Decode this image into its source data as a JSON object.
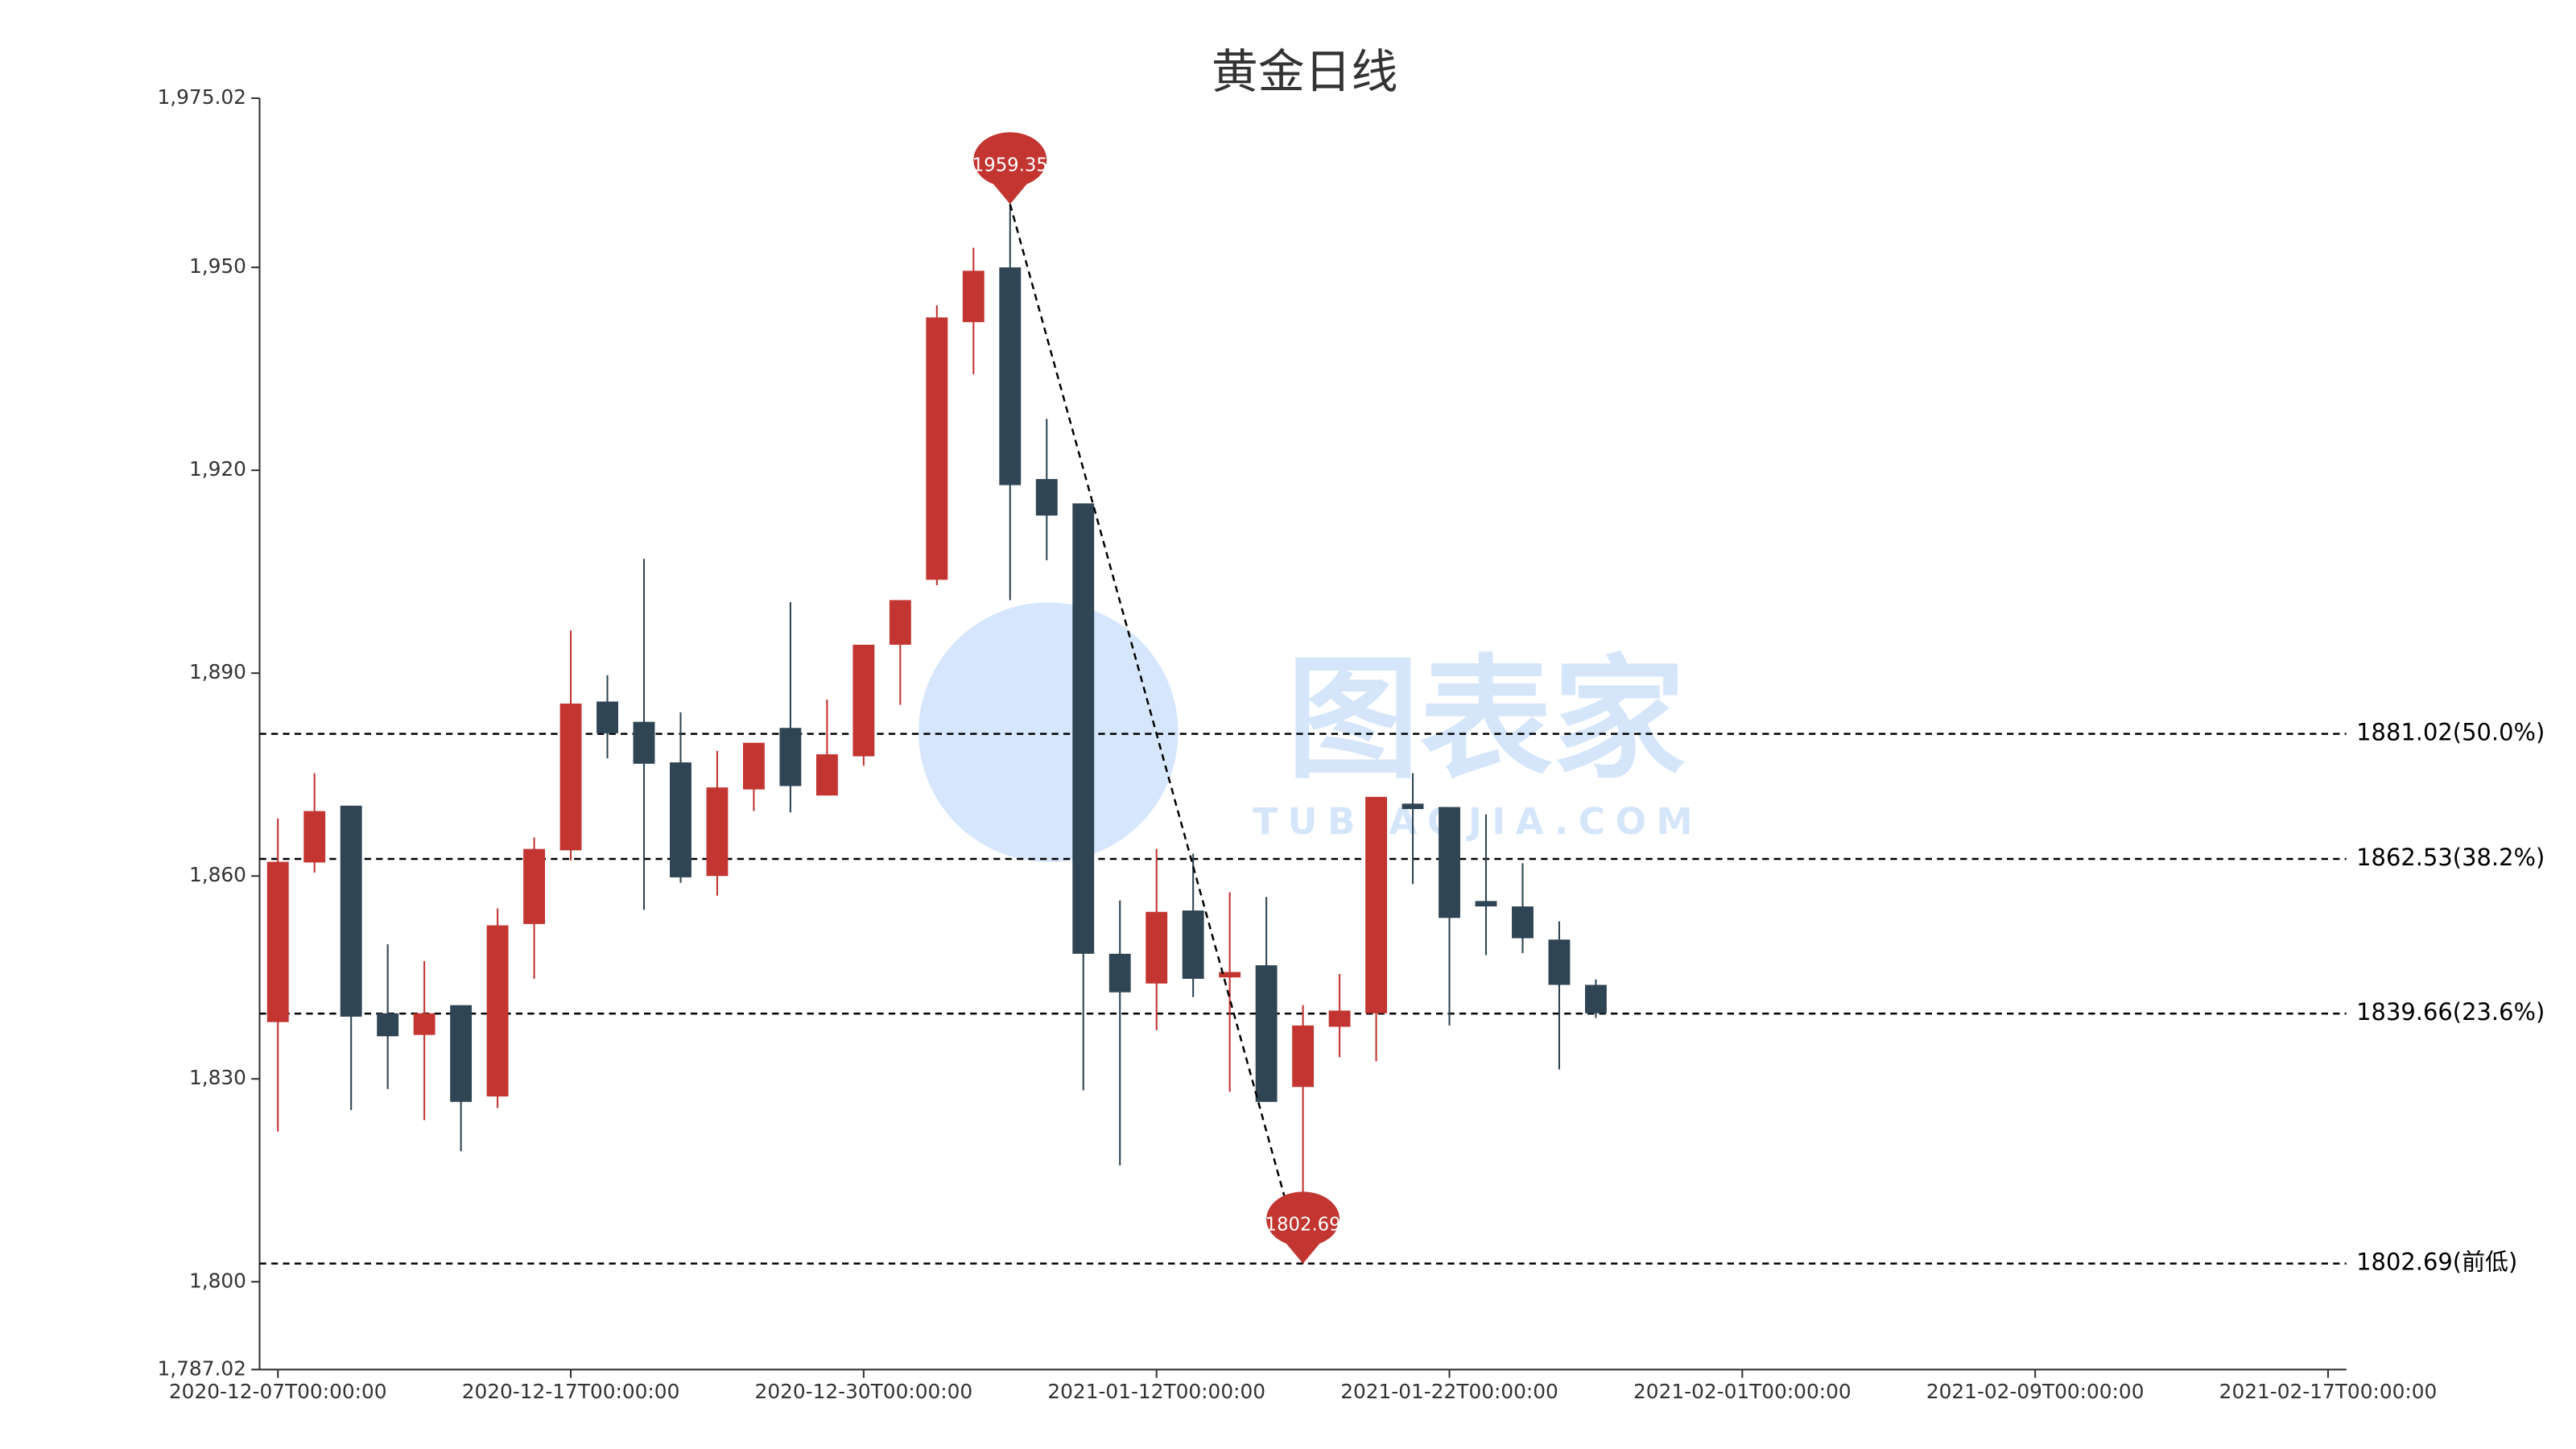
{
  "chart_data": {
    "type": "candlestick",
    "title": "黄金日线",
    "categories": [
      "2020-12-07T00:00:00",
      null,
      null,
      null,
      null,
      null,
      null,
      null,
      "2020-12-17T00:00:00",
      null,
      null,
      null,
      null,
      null,
      null,
      null,
      "2020-12-30T00:00:00",
      null,
      null,
      null,
      null,
      null,
      null,
      null,
      "2021-01-12T00:00:00",
      null,
      null,
      null,
      null,
      null,
      null,
      null,
      "2021-01-22T00:00:00",
      null,
      null,
      null,
      null,
      null,
      null,
      null,
      "2021-02-01T00:00:00",
      null,
      null,
      null,
      null,
      null,
      null,
      null,
      "2021-02-09T00:00:00",
      null,
      null,
      null,
      null,
      null,
      null,
      null,
      "2021-02-17T00:00:00"
    ],
    "open": [
      1838.4,
      1862,
      1870.4,
      1839.7,
      1836.5,
      1840.9,
      1827.4,
      1852.9,
      1863.8,
      1885.8,
      1882.8,
      1876.8,
      1860,
      1872.8,
      1881.9,
      1871.9,
      1877.7,
      1894.2,
      1903.8,
      1941.9,
      1950,
      1918.7,
      1915.1,
      1848.5,
      1844.1,
      1854.9,
      1845.0,
      1846.8,
      1828.8,
      1837.7,
      1839.7,
      1870.7,
      1870.2,
      1856.3,
      1855.5,
      1850.6,
      1843.9,
      null,
      null,
      null,
      null,
      null,
      null,
      null,
      null,
      null,
      null,
      null,
      null,
      null,
      null,
      null,
      null,
      null,
      null,
      null,
      null
    ],
    "high": [
      1868.5,
      1875.2,
      1870.4,
      1849.9,
      1847.4,
      1840.9,
      1855.2,
      1865.7,
      1896.3,
      1889.7,
      1906.9,
      1884.2,
      1878.5,
      1879.7,
      1900.5,
      1886.1,
      1894.2,
      1900.8,
      1944.4,
      1952.9,
      1959.35,
      1927.6,
      1915.1,
      1856.4,
      1864,
      1863.3,
      1857.6,
      1856.9,
      1840.9,
      1845.5,
      1871.7,
      1875.2,
      1870.2,
      1869.1,
      1861.9,
      1853.3,
      1844.7,
      null,
      null,
      null,
      null,
      null,
      null,
      null,
      null,
      null,
      null,
      null,
      null,
      null,
      null,
      null,
      null,
      null,
      null,
      null,
      null
    ],
    "low": [
      1822.2,
      1860.5,
      1825.4,
      1828.5,
      1823.9,
      1819.3,
      1825.7,
      1844.8,
      1862.3,
      1877.4,
      1855.0,
      1859.0,
      1857.1,
      1869.6,
      1869.4,
      1871.9,
      1876.3,
      1885.3,
      1903.0,
      1934.2,
      1900.8,
      1906.7,
      1828.3,
      1817.2,
      1837.2,
      1842.1,
      1828.1,
      1826.6,
      1802.69,
      1833.2,
      1832.6,
      1858.8,
      1837.9,
      1848.3,
      1848.6,
      1831.4,
      1839.0,
      null,
      null,
      null,
      null,
      null,
      null,
      null,
      null,
      null,
      null,
      null,
      null,
      null,
      null,
      null,
      null,
      null,
      null,
      null,
      null
    ],
    "close": [
      1862.1,
      1869.6,
      1839.2,
      1836.3,
      1839.7,
      1826.6,
      1852.7,
      1864,
      1885.5,
      1881.1,
      1876.6,
      1859.8,
      1873.1,
      1879.7,
      1873.3,
      1878,
      1894.2,
      1900.8,
      1942.6,
      1949.5,
      1917.8,
      1913.3,
      1848.5,
      1842.8,
      1854.7,
      1844.8,
      1845.8,
      1826.6,
      1837.9,
      1840.1,
      1871.7,
      1869.9,
      1853.8,
      1855.5,
      1850.8,
      1843.9,
      1839.7,
      null,
      null,
      null,
      null,
      null,
      null,
      null,
      null,
      null,
      null,
      null,
      null,
      null,
      null,
      null,
      null,
      null,
      null,
      null,
      null
    ],
    "up_color": "#c23531",
    "down_color": "#2f4554",
    "ylim": [
      1787.02,
      1975.02
    ],
    "yticks": [
      {
        "value": 1787.02,
        "label": "1,787.02"
      },
      {
        "value": 1800,
        "label": "1,800"
      },
      {
        "value": 1830,
        "label": "1,830"
      },
      {
        "value": 1860,
        "label": "1,860"
      },
      {
        "value": 1890,
        "label": "1,890"
      },
      {
        "value": 1920,
        "label": "1,920"
      },
      {
        "value": 1950,
        "label": "1,950"
      },
      {
        "value": 1975.02,
        "label": "1,975.02"
      }
    ],
    "levels": [
      {
        "value": 1881.02,
        "label": "1881.02(50.0%)"
      },
      {
        "value": 1862.53,
        "label": "1862.53(38.2%)"
      },
      {
        "value": 1839.66,
        "label": "1839.66(23.6%)"
      },
      {
        "value": 1802.69,
        "label": "1802.69(前低)"
      }
    ],
    "mark_points": [
      1959.35,
      1802.69
    ],
    "watermark": {
      "text": "图表家",
      "subtext": "TUBIAOJIA.COM"
    }
  }
}
